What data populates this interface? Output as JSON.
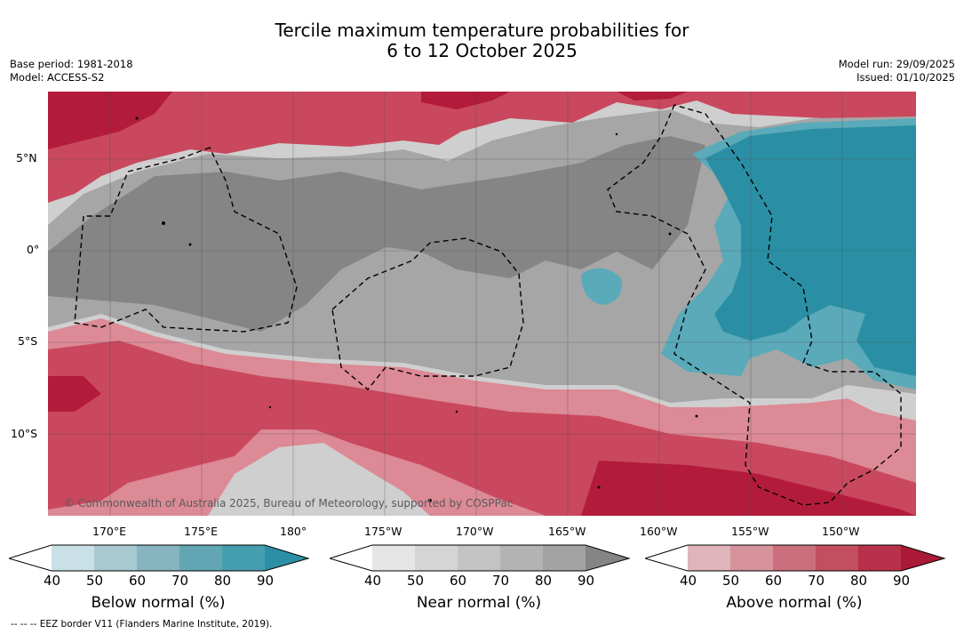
{
  "header": {
    "title_line1": "Tercile maximum temperature probabilities for",
    "title_line2": "6 to 12 October 2025",
    "base_period": "Base period: 1981-2018",
    "model": "Model: ACCESS-S2",
    "model_run": "Model run: 29/09/2025",
    "issued": "Issued: 01/10/2025"
  },
  "map": {
    "copyright": "© Commonwealth of Australia 2025, Bureau of Meteorology, supported by COSPPac",
    "lat_labels": [
      "5°N",
      "0°",
      "5°S",
      "10°S"
    ],
    "lon_labels": [
      "170°E",
      "175°E",
      "180°",
      "175°W",
      "170°W",
      "165°W",
      "160°W",
      "155°W",
      "150°W"
    ],
    "colors": {
      "above_strong": "#b31b3a",
      "above_mid": "#c9485e",
      "above_light": "#dc8a95",
      "near_dark": "#858585",
      "near_mid": "#a6a6a6",
      "near_light": "#cfcfcf",
      "below_strong": "#2a8fa4",
      "below_mid": "#5aaab9",
      "below_light": "#9ccbd4"
    }
  },
  "colorbars": {
    "ticks": [
      "40",
      "50",
      "60",
      "70",
      "80",
      "90"
    ],
    "below": {
      "label": "Below normal (%)",
      "colors": [
        "#ffffff",
        "#c9e0e6",
        "#a8c9d0",
        "#86b5bf",
        "#63a6b3",
        "#459eb0",
        "#2d8fa5"
      ]
    },
    "near": {
      "label": "Near normal (%)",
      "colors": [
        "#ffffff",
        "#e6e6e6",
        "#d5d5d5",
        "#c4c4c4",
        "#b3b3b3",
        "#a3a3a3",
        "#858585"
      ]
    },
    "above": {
      "label": "Above normal (%)",
      "colors": [
        "#ffffff",
        "#e0b4bb",
        "#d7939c",
        "#cc6f7c",
        "#c24e60",
        "#b83049",
        "#aa1a36"
      ]
    }
  },
  "footer": "--  --  -- EEZ border V11 (Flanders Marine Institute, 2019)."
}
